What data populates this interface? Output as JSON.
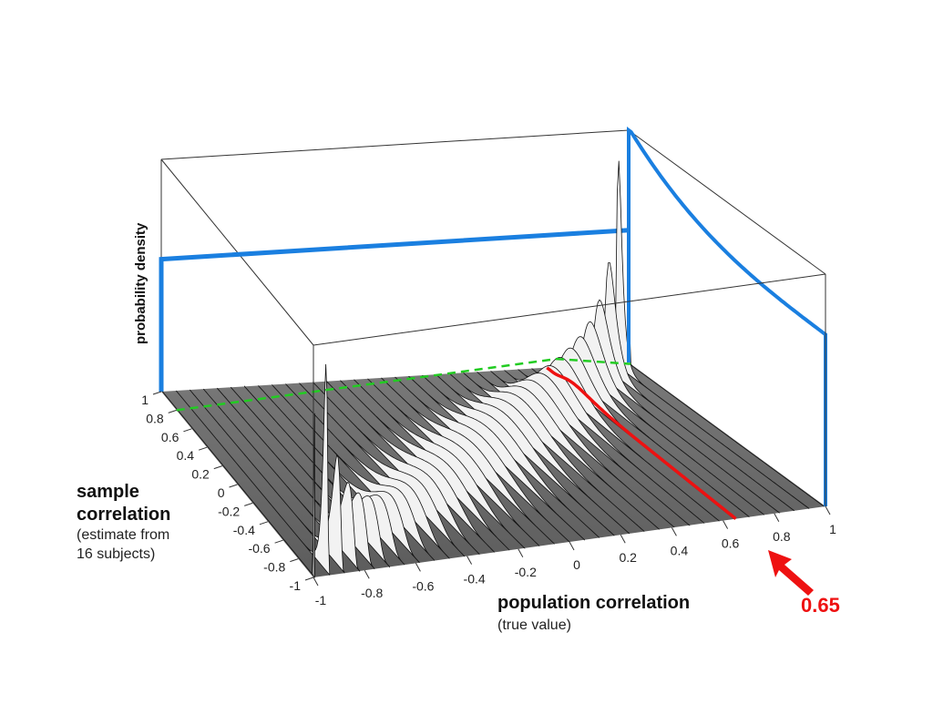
{
  "chart_data": {
    "type": "surface3d",
    "title": "",
    "x_axis": {
      "label": "population correlation",
      "sublabel": "(true value)",
      "range": [
        -1,
        1
      ],
      "ticks": [
        "-1",
        "-0.8",
        "-0.6",
        "-0.4",
        "-0.2",
        "0",
        "0.2",
        "0.4",
        "0.6",
        "0.8",
        "1"
      ]
    },
    "y_axis": {
      "label_line1": "sample",
      "label_line2": "correlation",
      "sublabel_line1": "(estimate from",
      "sublabel_line2": "16 subjects)",
      "range": [
        -1,
        1
      ],
      "ticks": [
        "-1",
        "-0.8",
        "-0.6",
        "-0.4",
        "-0.2",
        "0",
        "0.2",
        "0.4",
        "0.6",
        "0.8",
        "1"
      ]
    },
    "z_axis": {
      "label": "probability density"
    },
    "sample_size": 16,
    "highlighted_population_correlation": 0.65,
    "annotation": {
      "text": "0.65",
      "color": "#ee1111"
    },
    "marginal_uniform_density": 0.5,
    "colors": {
      "floor": "#666666",
      "surface": "#f2f2f2",
      "contour": "#111111",
      "marginal": "#1a7fe0",
      "slice": "#ee1111",
      "ridge": "#22cc22"
    }
  }
}
